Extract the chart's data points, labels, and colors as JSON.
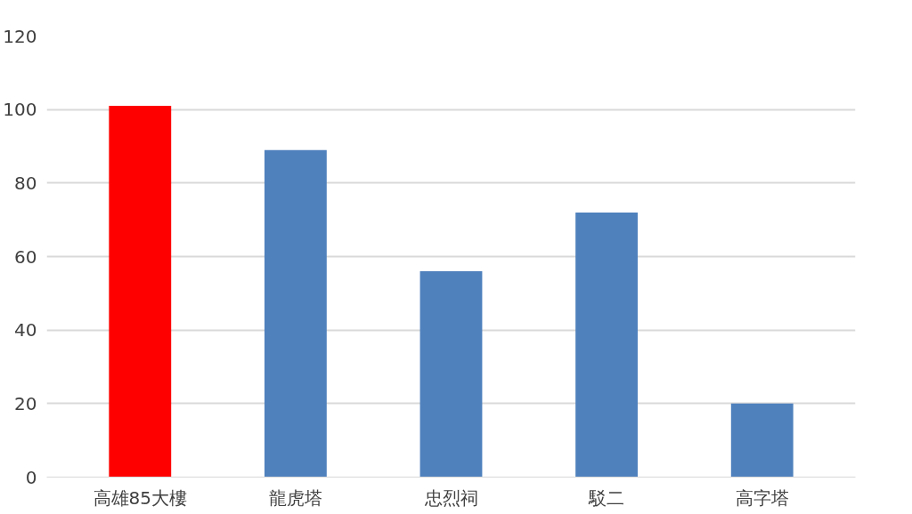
{
  "chart_data": {
    "type": "bar",
    "categories": [
      "高雄85大樓",
      "龍虎塔",
      "忠烈祠",
      "駁二",
      "高字塔"
    ],
    "values": [
      101,
      89,
      56,
      72,
      20
    ],
    "colors": [
      "#ff0000",
      "#4f81bd",
      "#4f81bd",
      "#4f81bd",
      "#4f81bd"
    ],
    "ylim": [
      0,
      120
    ],
    "yticks": [
      0,
      20,
      40,
      60,
      80,
      100,
      120
    ],
    "grid": "y"
  }
}
